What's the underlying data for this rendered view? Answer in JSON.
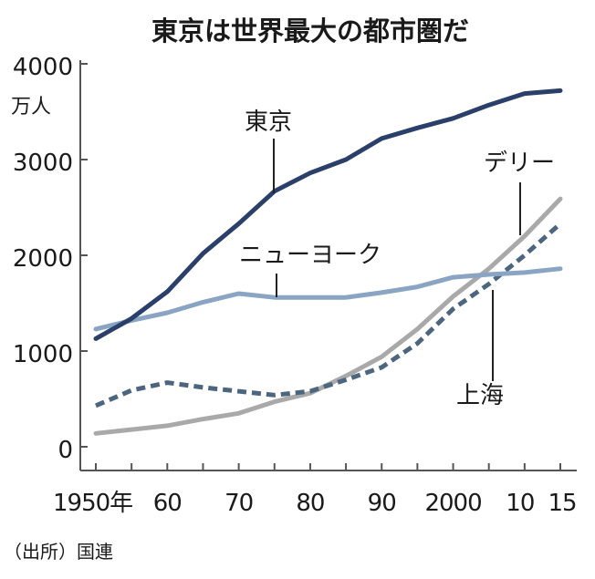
{
  "chart_data": {
    "type": "line",
    "title": "東京は世界最大の都市圏だ",
    "ylabel": "万人",
    "xlabel": "",
    "ylim": [
      0,
      4000
    ],
    "xlim": [
      1950,
      2015
    ],
    "yticks": [
      0,
      1000,
      2000,
      3000,
      4000
    ],
    "ytick_labels": [
      "0",
      "1000",
      "2000",
      "3000",
      "4000"
    ],
    "xticks": [
      1950,
      1960,
      1970,
      1980,
      1990,
      2000,
      2010,
      2015
    ],
    "xtick_labels": [
      "1950年",
      "60",
      "70",
      "80",
      "90",
      "2000",
      "10",
      "15"
    ],
    "x": [
      1950,
      1955,
      1960,
      1965,
      1970,
      1975,
      1980,
      1985,
      1990,
      1995,
      2000,
      2005,
      2010,
      2015
    ],
    "series": [
      {
        "name": "東京",
        "color": "#2b3f6b",
        "dashed": false,
        "values": [
          1130,
          1340,
          1620,
          2020,
          2330,
          2670,
          2860,
          3000,
          3220,
          3330,
          3430,
          3570,
          3690,
          3720
        ]
      },
      {
        "name": "ニューヨーク",
        "color": "#8aa5c4",
        "dashed": false,
        "values": [
          1230,
          1320,
          1400,
          1510,
          1600,
          1560,
          1560,
          1560,
          1610,
          1670,
          1770,
          1800,
          1820,
          1860
        ]
      },
      {
        "name": "デリー",
        "color": "#a9a9a9",
        "dashed": false,
        "values": [
          140,
          180,
          220,
          290,
          350,
          470,
          560,
          740,
          940,
          1230,
          1570,
          1860,
          2200,
          2590
        ]
      },
      {
        "name": "上海",
        "color": "#4d6680",
        "dashed": true,
        "values": [
          430,
          590,
          670,
          620,
          580,
          540,
          580,
          700,
          830,
          1080,
          1440,
          1700,
          2000,
          2330
        ]
      }
    ],
    "grid": false,
    "source": "（出所）国連"
  }
}
